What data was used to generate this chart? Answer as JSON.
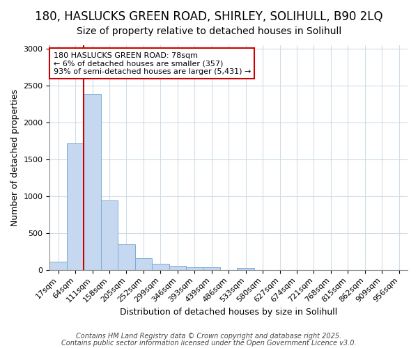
{
  "title_line1": "180, HASLUCKS GREEN ROAD, SHIRLEY, SOLIHULL, B90 2LQ",
  "title_line2": "Size of property relative to detached houses in Solihull",
  "xlabel": "Distribution of detached houses by size in Solihull",
  "ylabel": "Number of detached properties",
  "categories": [
    "17sqm",
    "64sqm",
    "111sqm",
    "158sqm",
    "205sqm",
    "252sqm",
    "299sqm",
    "346sqm",
    "393sqm",
    "439sqm",
    "486sqm",
    "533sqm",
    "580sqm",
    "627sqm",
    "674sqm",
    "721sqm",
    "768sqm",
    "815sqm",
    "862sqm",
    "909sqm",
    "956sqm"
  ],
  "values": [
    110,
    1720,
    2390,
    940,
    345,
    155,
    80,
    55,
    40,
    40,
    0,
    30,
    0,
    0,
    0,
    0,
    0,
    0,
    0,
    0,
    0
  ],
  "bar_color": "#c5d8f0",
  "bar_edge_color": "#7aadd4",
  "vline_color": "#cc0000",
  "vline_position": 1.5,
  "annotation_text": "180 HASLUCKS GREEN ROAD: 78sqm\n← 6% of detached houses are smaller (357)\n93% of semi-detached houses are larger (5,431) →",
  "annotation_box_color": "#ffffff",
  "annotation_box_edge": "#cc0000",
  "ylim": [
    0,
    3050
  ],
  "yticks": [
    0,
    500,
    1000,
    1500,
    2000,
    2500,
    3000
  ],
  "background_color": "#ffffff",
  "plot_bg_color": "#ffffff",
  "footer_line1": "Contains HM Land Registry data © Crown copyright and database right 2025.",
  "footer_line2": "Contains public sector information licensed under the Open Government Licence v3.0.",
  "grid_color": "#d0dce8",
  "title_fontsize": 12,
  "subtitle_fontsize": 10,
  "axis_label_fontsize": 9,
  "tick_fontsize": 8,
  "annotation_fontsize": 8,
  "footer_fontsize": 7
}
